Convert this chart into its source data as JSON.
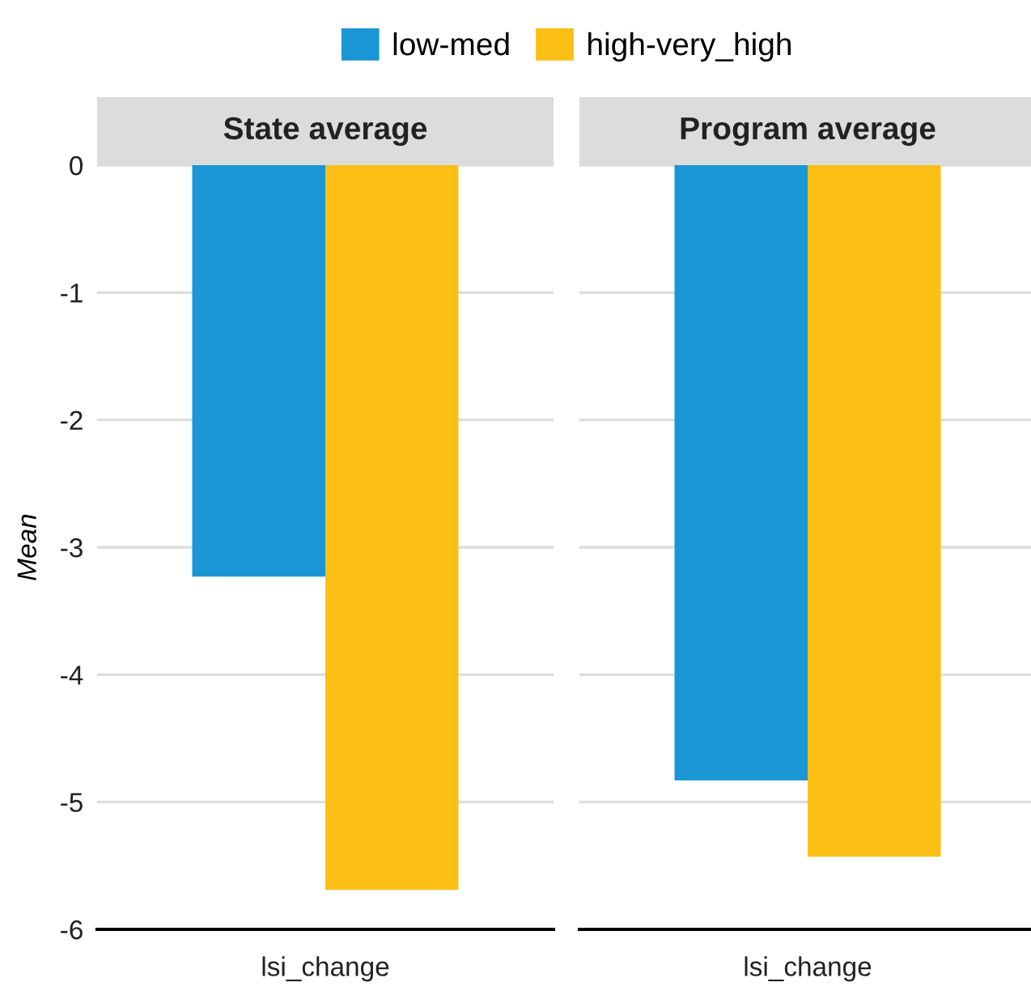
{
  "chart_data": [
    {
      "type": "bar",
      "title": "State average",
      "ylabel": "Mean",
      "categories": [
        "lsi_change"
      ],
      "series": [
        {
          "name": "low-med",
          "color": "#1b96d4",
          "values": [
            -3.23
          ]
        },
        {
          "name": "high-very_high",
          "color": "#fbbf16",
          "values": [
            -5.69
          ]
        }
      ],
      "ylim": [
        -6,
        0
      ],
      "yticks": [
        -6,
        -5,
        -4,
        -3,
        -2,
        -1,
        0
      ],
      "grid": "y",
      "legend": "top"
    },
    {
      "type": "bar",
      "title": "Program average",
      "categories": [
        "lsi_change"
      ],
      "series": [
        {
          "color": "#1b96d4",
          "values": [
            -4.83
          ]
        },
        {
          "color": "#fbbf16",
          "values": [
            -5.43
          ]
        }
      ],
      "ylim": [
        -6,
        0
      ],
      "yticks": [
        -6,
        -5,
        -4,
        -3,
        -2,
        -1,
        0
      ],
      "grid": "y",
      "tick_labels": "x"
    }
  ]
}
